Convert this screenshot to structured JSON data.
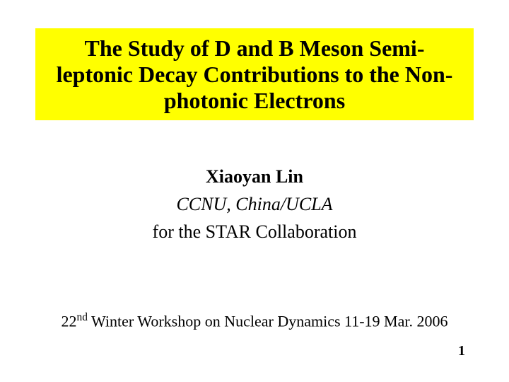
{
  "title": "The Study of D and B Meson Semi-leptonic Decay Contributions to the Non-photonic Electrons",
  "author": {
    "name": "Xiaoyan Lin",
    "affiliation": "CCNU, China/UCLA",
    "collaboration": "for the STAR Collaboration"
  },
  "footer": {
    "ordinal": "22",
    "ordinal_suffix": "nd",
    "rest": " Winter Workshop on Nuclear Dynamics 11-19 Mar. 2006"
  },
  "page_number": "1",
  "colors": {
    "title_bg": "#ffff00",
    "text": "#000000",
    "slide_bg": "#ffffff"
  }
}
